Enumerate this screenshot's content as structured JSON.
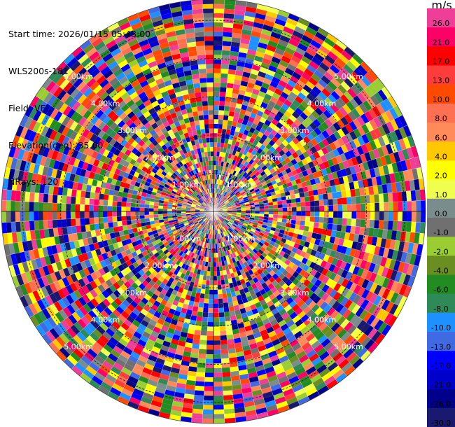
{
  "header": {
    "start_time": "Start time: 2026/01/15 05:43:00",
    "instrument": "WLS200s-181",
    "field": "Field: VEL",
    "elevation": "Elevation(deg): 35.00",
    "nrays": "NRays: 120"
  },
  "chart_data": {
    "type": "heatmap",
    "subtype": "polar-ppi",
    "field": "VEL",
    "elevation_deg": 35.0,
    "n_rays": 120,
    "range_rings": [
      {
        "value": 1.0,
        "label": "1.00km"
      },
      {
        "value": 2.0,
        "label": "2.00km"
      },
      {
        "value": 3.0,
        "label": "3.00km"
      },
      {
        "value": 4.0,
        "label": "4.00km"
      },
      {
        "value": 5.0,
        "label": "5.00km"
      }
    ],
    "max_range_km": 5.55,
    "colorbar": {
      "unit": "m/s",
      "levels": [
        {
          "label": "26.0",
          "color": "#ee3e98"
        },
        {
          "label": "21.0",
          "color": "#ff0066"
        },
        {
          "label": "17.0",
          "color": "#ff0000"
        },
        {
          "label": "13.0",
          "color": "#ff3c3c"
        },
        {
          "label": "10.0",
          "color": "#ff4a00"
        },
        {
          "label": "8.0",
          "color": "#ff6f52"
        },
        {
          "label": "6.0",
          "color": "#ff8a5a"
        },
        {
          "label": "4.0",
          "color": "#ffc800"
        },
        {
          "label": "2.0",
          "color": "#ffff00"
        },
        {
          "label": "1.0",
          "color": "#f0ff4d"
        },
        {
          "label": "0.0",
          "color": "#7b8c8c"
        },
        {
          "label": "-1.0",
          "color": "#707070"
        },
        {
          "label": "-2.0",
          "color": "#9acd32"
        },
        {
          "label": "-4.0",
          "color": "#6b8e23"
        },
        {
          "label": "-6.0",
          "color": "#228b22"
        },
        {
          "label": "-8.0",
          "color": "#2e8b57"
        },
        {
          "label": "-10.0",
          "color": "#1e90ff"
        },
        {
          "label": "-13.0",
          "color": "#4169e1"
        },
        {
          "label": "-17.0",
          "color": "#0000ff"
        },
        {
          "label": "-21.0",
          "color": "#0000cd"
        },
        {
          "label": "-26.0",
          "color": "#00008b"
        },
        {
          "label": "-30.0",
          "color": "#191970"
        }
      ]
    }
  }
}
